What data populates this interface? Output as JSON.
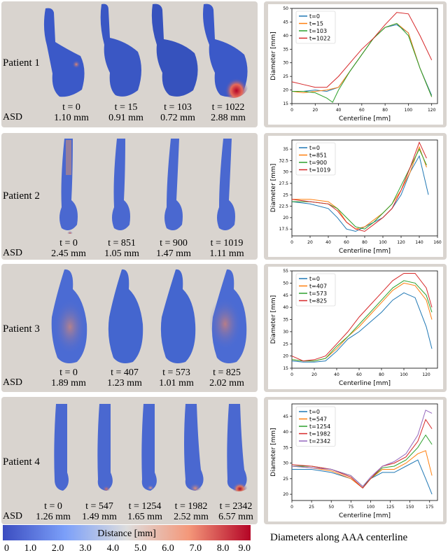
{
  "rows": [
    {
      "patient": "Patient 1",
      "times": [
        "t = 0",
        "t = 15",
        "t = 103",
        "t = 1022"
      ],
      "asd": [
        "1.10 mm",
        "0.91 mm",
        "0.72 mm",
        "2.88 mm"
      ],
      "chart_data": {
        "type": "line",
        "xlabel": "Centerline [mm]",
        "ylabel": "Diameter [mm]",
        "xlim": [
          0,
          125
        ],
        "ylim": [
          15,
          50
        ],
        "xticks": [
          0,
          20,
          40,
          60,
          80,
          100,
          120
        ],
        "yticks": [
          15,
          20,
          25,
          30,
          35,
          40,
          45,
          50
        ],
        "legend_position": "top-left",
        "series": [
          {
            "name": "t=0",
            "color": "#1f77b4",
            "x": [
              0,
              10,
              20,
              30,
              40,
              50,
              60,
              70,
              80,
              90,
              100,
              110,
              120
            ],
            "y": [
              19.5,
              19.5,
              20,
              19.5,
              21,
              27,
              33,
              39,
              43,
              44,
              41,
              28,
              18
            ]
          },
          {
            "name": "t=15",
            "color": "#ff7f0e",
            "x": [
              0,
              10,
              20,
              30,
              40,
              50,
              60,
              70,
              80,
              90,
              100,
              110,
              120
            ],
            "y": [
              19.5,
              19,
              19.5,
              20,
              21,
              27,
              33,
              39,
              43,
              44.5,
              41,
              28,
              17.5
            ]
          },
          {
            "name": "t=103",
            "color": "#2ca02c",
            "x": [
              0,
              10,
              20,
              30,
              35,
              40,
              50,
              60,
              70,
              80,
              90,
              100,
              110,
              120
            ],
            "y": [
              19.5,
              19.5,
              19,
              17,
              15.5,
              20,
              27,
              33,
              39,
              43,
              44.5,
              40,
              28,
              17.5
            ]
          },
          {
            "name": "t=1022",
            "color": "#d62728",
            "x": [
              0,
              10,
              20,
              30,
              40,
              50,
              60,
              70,
              80,
              90,
              100,
              110,
              120
            ],
            "y": [
              23,
              22,
              21,
              21,
              25,
              30,
              35,
              39,
              44,
              48.5,
              48,
              40,
              31
            ]
          }
        ]
      }
    },
    {
      "patient": "Patient 2",
      "times": [
        "t = 0",
        "t = 851",
        "t = 900",
        "t = 1019"
      ],
      "asd": [
        "2.45 mm",
        "1.05 mm",
        "1.47 mm",
        "1.11 mm"
      ],
      "chart_data": {
        "type": "line",
        "xlabel": "Centerline [mm]",
        "ylabel": "Diameter [mm]",
        "xlim": [
          0,
          160
        ],
        "ylim": [
          16,
          37
        ],
        "xticks": [
          0,
          20,
          40,
          60,
          80,
          100,
          120,
          140,
          160
        ],
        "yticks": [
          17.5,
          20.0,
          22.5,
          25.0,
          27.5,
          30.0,
          32.5,
          35.0
        ],
        "legend_position": "top-left",
        "series": [
          {
            "name": "t=0",
            "color": "#1f77b4",
            "x": [
              0,
              20,
              40,
              50,
              60,
              70,
              80,
              90,
              100,
              110,
              120,
              130,
              140,
              150
            ],
            "y": [
              23.5,
              23,
              22,
              20,
              17.5,
              17,
              18,
              19,
              20,
              22,
              25,
              30,
              33.5,
              25
            ]
          },
          {
            "name": "t=851",
            "color": "#ff7f0e",
            "x": [
              0,
              20,
              40,
              50,
              60,
              70,
              80,
              90,
              100,
              110,
              120,
              130,
              140,
              148
            ],
            "y": [
              24,
              24,
              23.5,
              22,
              19,
              17.5,
              18,
              19.5,
              21,
              23,
              26,
              30,
              35.5,
              31
            ]
          },
          {
            "name": "t=900",
            "color": "#2ca02c",
            "x": [
              0,
              20,
              40,
              50,
              60,
              70,
              80,
              90,
              100,
              110,
              120,
              130,
              140,
              148
            ],
            "y": [
              23.5,
              23.5,
              23,
              22,
              20,
              18,
              17.5,
              19,
              21,
              23,
              27,
              31,
              35,
              31.5
            ]
          },
          {
            "name": "t=1019",
            "color": "#d62728",
            "x": [
              0,
              20,
              40,
              50,
              60,
              70,
              80,
              90,
              100,
              110,
              120,
              130,
              140,
              148
            ],
            "y": [
              24,
              23.5,
              23,
              21.5,
              19,
              17.5,
              17,
              18.5,
              20,
              22,
              26,
              31,
              36.5,
              33
            ]
          }
        ]
      }
    },
    {
      "patient": "Patient 3",
      "times": [
        "t = 0",
        "t = 407",
        "t = 573",
        "t = 825"
      ],
      "asd": [
        "1.89 mm",
        "1.23 mm",
        "1.01 mm",
        "2.02 mm"
      ],
      "chart_data": {
        "type": "line",
        "xlabel": "Centerline [mm]",
        "ylabel": "Diameter [mm]",
        "xlim": [
          0,
          130
        ],
        "ylim": [
          15,
          55
        ],
        "xticks": [
          0,
          20,
          40,
          60,
          80,
          100,
          120
        ],
        "yticks": [
          15,
          20,
          25,
          30,
          35,
          40,
          45,
          50,
          55
        ],
        "legend_position": "top-left",
        "series": [
          {
            "name": "t=0",
            "color": "#1f77b4",
            "x": [
              0,
              10,
              20,
              30,
              40,
              50,
              60,
              70,
              80,
              90,
              100,
              110,
              120,
              125
            ],
            "y": [
              18,
              17.5,
              17.5,
              18,
              22,
              27,
              30,
              34,
              38,
              43,
              46,
              44,
              32,
              23
            ]
          },
          {
            "name": "t=407",
            "color": "#ff7f0e",
            "x": [
              0,
              10,
              20,
              30,
              40,
              50,
              60,
              70,
              80,
              90,
              100,
              110,
              120,
              125
            ],
            "y": [
              18.5,
              18,
              18,
              19,
              23,
              28,
              32,
              37,
              42,
              47,
              50,
              49,
              43,
              35
            ]
          },
          {
            "name": "t=573",
            "color": "#2ca02c",
            "x": [
              0,
              10,
              20,
              30,
              40,
              50,
              60,
              70,
              80,
              90,
              100,
              110,
              120,
              125
            ],
            "y": [
              18.5,
              18,
              18,
              19,
              24,
              28,
              33,
              38,
              43,
              48,
              51,
              50,
              45,
              38
            ]
          },
          {
            "name": "t=825",
            "color": "#d62728",
            "x": [
              0,
              10,
              20,
              30,
              40,
              50,
              60,
              70,
              80,
              90,
              100,
              110,
              120,
              125
            ],
            "y": [
              20,
              18,
              18.5,
              20,
              25,
              30,
              36,
              41,
              46,
              51,
              54,
              54,
              48,
              40
            ]
          }
        ]
      }
    },
    {
      "patient": "Patient 4",
      "times": [
        "t = 0",
        "t = 547",
        "t = 1254",
        "t = 1982",
        "t = 2342"
      ],
      "asd": [
        "1.26 mm",
        "1.49 mm",
        "1.65 mm",
        "2.52 mm",
        "6.57 mm"
      ],
      "chart_data": {
        "type": "line",
        "xlabel": "Centerline [mm]",
        "ylabel": "Diameter [mm]",
        "xlim": [
          0,
          185
        ],
        "ylim": [
          18,
          49
        ],
        "xticks": [
          0,
          25,
          50,
          75,
          100,
          125,
          150,
          175
        ],
        "yticks": [
          20,
          25,
          30,
          35,
          40,
          45
        ],
        "legend_position": "top-left",
        "series": [
          {
            "name": "t=0",
            "color": "#1f77b4",
            "x": [
              0,
              25,
              50,
              75,
              90,
              100,
              115,
              130,
              145,
              160,
              170,
              178
            ],
            "y": [
              28,
              28,
              27,
              25,
              22,
              25,
              27,
              27,
              29,
              31,
              25,
              20
            ]
          },
          {
            "name": "t=547",
            "color": "#ff7f0e",
            "x": [
              0,
              25,
              50,
              75,
              90,
              100,
              115,
              130,
              145,
              160,
              170,
              178
            ],
            "y": [
              29,
              28.5,
              27.5,
              25,
              22,
              25,
              28,
              28,
              30,
              33,
              34,
              26
            ]
          },
          {
            "name": "t=1254",
            "color": "#2ca02c",
            "x": [
              0,
              25,
              50,
              75,
              90,
              100,
              115,
              130,
              145,
              160,
              170,
              178
            ],
            "y": [
              29,
              29,
              28,
              26,
              22.5,
              25,
              28.5,
              29,
              31,
              35,
              39,
              36
            ]
          },
          {
            "name": "t=1982",
            "color": "#d62728",
            "x": [
              0,
              25,
              50,
              75,
              90,
              100,
              115,
              130,
              145,
              160,
              170,
              178
            ],
            "y": [
              29.5,
              29,
              28,
              25.5,
              22,
              25,
              29,
              30,
              32,
              37,
              44,
              41
            ]
          },
          {
            "name": "t=2342",
            "color": "#9467bd",
            "x": [
              0,
              25,
              50,
              75,
              90,
              100,
              115,
              130,
              145,
              160,
              170,
              178
            ],
            "y": [
              29,
              28.5,
              28,
              26,
              22.5,
              25.5,
              29,
              30.5,
              33,
              39,
              47,
              46
            ]
          }
        ]
      }
    }
  ],
  "asd_label": "ASD",
  "colorbar": {
    "title": "Distance [mm]",
    "ticks": [
      "0",
      "1.0",
      "2.0",
      "3.0",
      "4.0",
      "5.0",
      "6.0",
      "7.0",
      "8.0",
      "9.0"
    ],
    "colors": [
      "#3b4cc0",
      "#b40426"
    ]
  },
  "caption": "Diameters along AAA centerline"
}
